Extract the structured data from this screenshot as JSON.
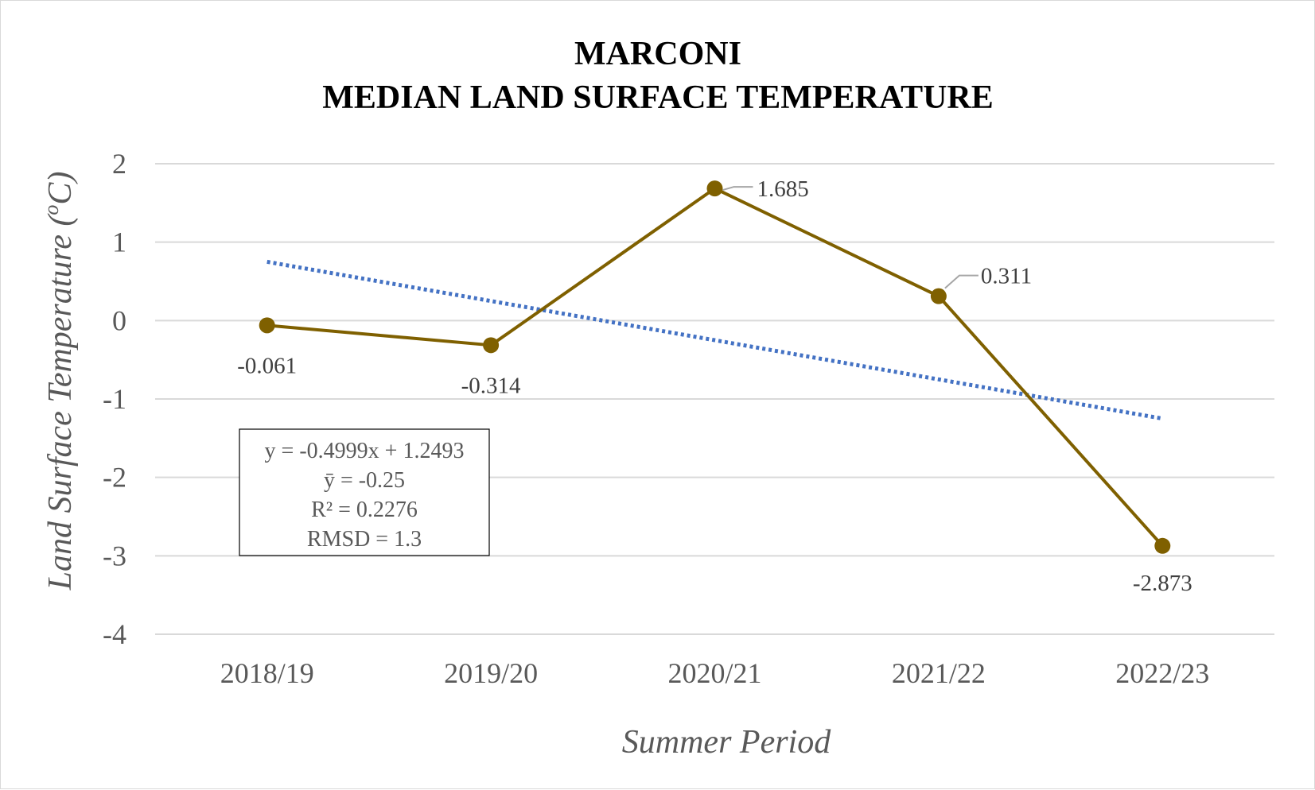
{
  "chart_data": {
    "type": "line",
    "title": [
      "MARCONI",
      "MEDIAN LAND SURFACE TEMPERATURE"
    ],
    "xlabel": "Summer Period",
    "ylabel": "Land Surface Temperature (",
    "ylabel_sup": "o",
    "ylabel_unit": "C)",
    "categories": [
      "2018/19",
      "2019/20",
      "2020/21",
      "2021/22",
      "2022/23"
    ],
    "series": [
      {
        "values": [
          -0.061,
          -0.314,
          1.685,
          0.311,
          -2.873
        ],
        "labels": [
          "-0.061",
          "-0.314",
          "1.685",
          "0.311",
          "-2.873"
        ],
        "color": "#7f6000"
      }
    ],
    "trendline": {
      "type": "linear",
      "slope": -0.4999,
      "intercept": 1.2493,
      "color": "#4472c4",
      "style": "dotted"
    },
    "ylim": [
      -4,
      2
    ],
    "yticks": [
      "2",
      "1",
      "0",
      "-1",
      "-2",
      "-3",
      "-4"
    ],
    "grid": true,
    "stats_box": [
      "y = -0.4999x + 1.2493",
      "ȳ = -0.25",
      "R² = 0.2276",
      "RMSD = 1.3"
    ]
  }
}
